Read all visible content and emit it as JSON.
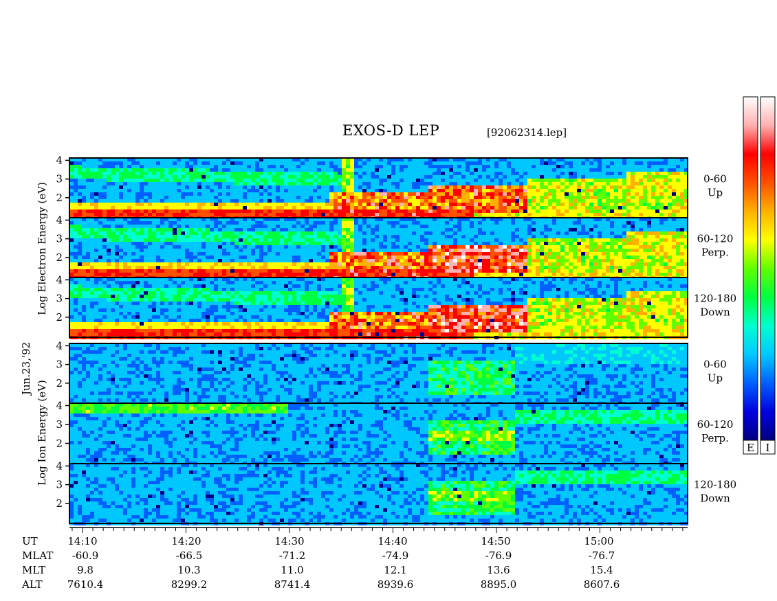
{
  "chart_data": {
    "type": "heatmap",
    "title": "EXOS-D LEP",
    "file_label": "[92062314.lep]",
    "date_label": "Jun.23,'92",
    "colorbar_labels": [
      "E",
      "I"
    ],
    "colorscale": [
      "#000080",
      "#0000e0",
      "#0060ff",
      "#00c8ff",
      "#00ffd0",
      "#00ff40",
      "#60ff00",
      "#ffff00",
      "#ffb000",
      "#ff5000",
      "#ff0000",
      "#ffb0b0",
      "#ffffff"
    ],
    "groups": [
      {
        "ylabel": [
          "Log",
          "Electron",
          "Energy",
          "(eV)"
        ],
        "species": "electron"
      },
      {
        "ylabel": [
          "Log",
          "Ion",
          "Energy",
          "(eV)"
        ],
        "species": "ion"
      }
    ],
    "panels": [
      {
        "species": "electron",
        "pitch": "0-60",
        "dir": "Up",
        "yticks": [
          "4",
          "3",
          "2"
        ]
      },
      {
        "species": "electron",
        "pitch": "60-120",
        "dir": "Perp.",
        "yticks": [
          "4",
          "3",
          "2"
        ]
      },
      {
        "species": "electron",
        "pitch": "120-180",
        "dir": "Down",
        "yticks": [
          "4",
          "3",
          "2"
        ]
      },
      {
        "species": "ion",
        "pitch": "0-60",
        "dir": "Up",
        "yticks": [
          "4",
          "3",
          "2"
        ]
      },
      {
        "species": "ion",
        "pitch": "60-120",
        "dir": "Perp.",
        "yticks": [
          "4",
          "3",
          "2"
        ]
      },
      {
        "species": "ion",
        "pitch": "120-180",
        "dir": "Down",
        "yticks": [
          "4",
          "3",
          "2"
        ]
      }
    ],
    "xaxis": {
      "rows": [
        {
          "name": "UT",
          "values": [
            "14:10",
            "14:20",
            "14:30",
            "14:40",
            "14:50",
            "15:00"
          ]
        },
        {
          "name": "MLAT",
          "values": [
            "-60.9",
            "-66.5",
            "-71.2",
            "-74.9",
            "-76.9",
            "-76.7"
          ]
        },
        {
          "name": "MLT",
          "values": [
            "9.8",
            "10.3",
            "11.0",
            "12.1",
            "13.6",
            "15.4"
          ]
        },
        {
          "name": "ALT",
          "values": [
            "7610.4",
            "8299.2",
            "8741.4",
            "8939.6",
            "8895.0",
            "8607.6"
          ]
        }
      ]
    }
  }
}
